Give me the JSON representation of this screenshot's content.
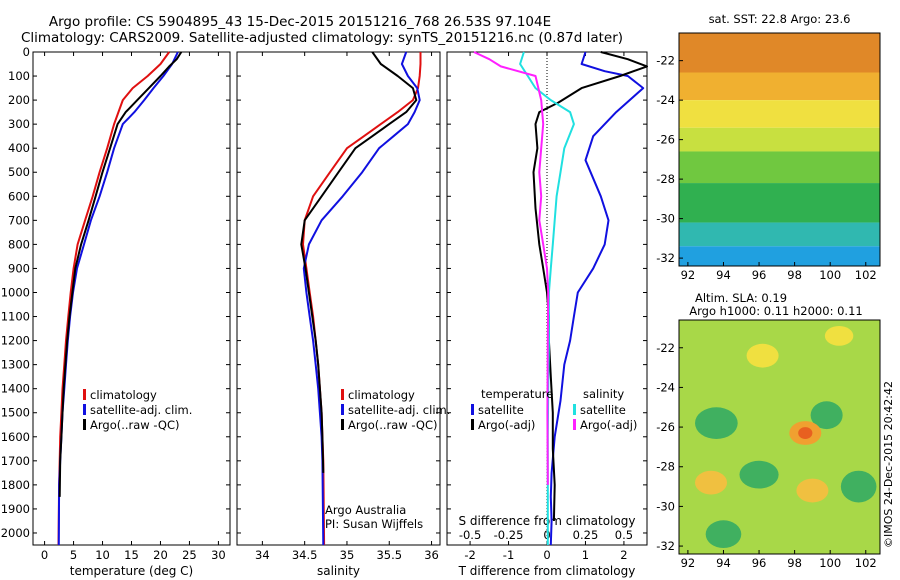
{
  "header": {
    "line1": "Argo profile: CS 5904895_43 15-Dec-2015 20151216_768 26.53S 97.104E",
    "line2": "Climatology: CARS2009. Satellite-adjusted climatology: synTS_20151216.nc (0.87d later)"
  },
  "colors": {
    "climatology": "#e01010",
    "satellite": "#1010e0",
    "argo": "#000000",
    "satellite_salinity": "#20e0e0",
    "argo_salinity": "#ff20ff"
  },
  "depth_axis": {
    "ylim": [
      0,
      2050
    ],
    "ticks": [
      0,
      100,
      200,
      300,
      400,
      500,
      600,
      700,
      800,
      900,
      1000,
      1100,
      1200,
      1300,
      1400,
      1500,
      1600,
      1700,
      1800,
      1900,
      2000
    ]
  },
  "chart_data": [
    {
      "type": "line",
      "id": "temperature",
      "xlabel": "temperature (deg C)",
      "ylabel": "",
      "xlim": [
        -2,
        32
      ],
      "xticks": [
        0,
        5,
        10,
        15,
        20,
        25,
        30
      ],
      "ylim": [
        0,
        2050
      ],
      "legend": [
        "climatology",
        "satellite-adj. clim.",
        "Argo(..raw -QC)"
      ],
      "series": [
        {
          "name": "climatology",
          "color_key": "climatology",
          "x": [
            21.5,
            20,
            17.8,
            15.2,
            13.5,
            12,
            10.8,
            9.5,
            8.3,
            7,
            5.7,
            5,
            4.5,
            4.1,
            3.7,
            3.4,
            3.1,
            2.9,
            2.7,
            2.6,
            2.5,
            2.4
          ],
          "y": [
            0,
            50,
            100,
            150,
            200,
            300,
            400,
            500,
            600,
            700,
            800,
            900,
            1000,
            1100,
            1200,
            1300,
            1400,
            1500,
            1600,
            1700,
            1800,
            2050
          ]
        },
        {
          "name": "satellite-adj. clim.",
          "color_key": "satellite",
          "x": [
            23,
            22,
            20.5,
            18.8,
            17.2,
            15.5,
            13.5,
            12,
            10.8,
            9.5,
            8,
            6.8,
            5.6,
            4.9,
            4.4,
            4,
            3.7,
            3.4,
            3.1,
            2.9,
            2.7,
            2.5,
            2.45
          ],
          "y": [
            0,
            50,
            100,
            150,
            200,
            250,
            300,
            400,
            500,
            600,
            700,
            800,
            900,
            1000,
            1100,
            1200,
            1300,
            1400,
            1500,
            1600,
            1700,
            1800,
            2050
          ]
        },
        {
          "name": "Argo(..raw -QC)",
          "color_key": "argo",
          "x": [
            23.6,
            22.8,
            21.5,
            20,
            18,
            16,
            14,
            12.6,
            11.3,
            10,
            8.8,
            7.6,
            6.3,
            5.3,
            4.8,
            4.3,
            3.9,
            3.6,
            3.3,
            3.1,
            2.9,
            2.7,
            2.6
          ],
          "y": [
            0,
            30,
            60,
            100,
            150,
            200,
            250,
            300,
            400,
            500,
            600,
            700,
            800,
            900,
            1000,
            1100,
            1200,
            1300,
            1400,
            1500,
            1600,
            1700,
            1850
          ]
        }
      ]
    },
    {
      "type": "line",
      "id": "salinity",
      "xlabel": "salinity",
      "ylabel": "",
      "xlim": [
        33.7,
        36.1
      ],
      "xticks": [
        34,
        34.5,
        35,
        35.5,
        36
      ],
      "ylim": [
        0,
        2050
      ],
      "legend": [
        "climatology",
        "satellite-adj. clim.",
        "Argo(..raw -QC)"
      ],
      "annotation": [
        "Argo Australia",
        "PI: Susan Wijffels"
      ],
      "series": [
        {
          "name": "climatology",
          "color_key": "climatology",
          "x": [
            35.87,
            35.87,
            35.86,
            35.84,
            35.78,
            35.6,
            35.4,
            35.2,
            35,
            34.8,
            34.6,
            34.5,
            34.48,
            34.52,
            34.56,
            34.6,
            34.63,
            34.66,
            34.68,
            34.7,
            34.71,
            34.72,
            34.73
          ],
          "y": [
            0,
            50,
            100,
            150,
            200,
            250,
            300,
            350,
            400,
            500,
            600,
            700,
            800,
            900,
            1000,
            1100,
            1200,
            1300,
            1400,
            1500,
            1600,
            1700,
            2050
          ]
        },
        {
          "name": "satellite-adj. clim.",
          "color_key": "satellite",
          "x": [
            35.7,
            35.65,
            35.72,
            35.83,
            35.86,
            35.8,
            35.72,
            35.55,
            35.38,
            35.18,
            34.95,
            34.7,
            34.55,
            34.49,
            34.52,
            34.56,
            34.6,
            34.63,
            34.66,
            34.68,
            34.7,
            34.71,
            34.72
          ],
          "y": [
            0,
            50,
            100,
            150,
            200,
            250,
            300,
            350,
            400,
            500,
            600,
            700,
            800,
            900,
            1000,
            1100,
            1200,
            1300,
            1400,
            1500,
            1600,
            1700,
            2050
          ]
        },
        {
          "name": "Argo(..raw -QC)",
          "color_key": "argo",
          "x": [
            35.3,
            35.4,
            35.6,
            35.78,
            35.82,
            35.7,
            35.5,
            35.3,
            35.1,
            34.9,
            34.7,
            34.5,
            34.46,
            34.51,
            34.55,
            34.59,
            34.63,
            34.66,
            34.68,
            34.7,
            34.71,
            34.72
          ],
          "y": [
            0,
            50,
            100,
            150,
            200,
            250,
            300,
            350,
            400,
            500,
            600,
            700,
            800,
            900,
            1000,
            1100,
            1200,
            1300,
            1400,
            1500,
            1600,
            1750
          ]
        }
      ]
    },
    {
      "type": "line",
      "id": "difference",
      "xlabel": "T difference from climatology",
      "xlabel2": "S difference from climatology",
      "xlim": [
        -2.6,
        2.6
      ],
      "xticks": [
        -2,
        -1,
        0,
        1,
        2
      ],
      "xticklabels": [
        "-2",
        "-1",
        "0",
        "1",
        "2"
      ],
      "sticks": [
        -0.5,
        -0.25,
        0,
        0.25,
        0.5
      ],
      "sticklabels": [
        "-0.5",
        "-0.25",
        "0",
        "0.25",
        "0.5"
      ],
      "ylim": [
        0,
        2050
      ],
      "legend_titles": [
        "temperature",
        "salinity"
      ],
      "legend": [
        "satellite",
        "Argo(-adj)",
        "satellite",
        "Argo(-adj)"
      ],
      "series": [
        {
          "name": "satellite",
          "group": "temperature",
          "color_key": "satellite",
          "x": [
            1.0,
            0.9,
            1.5,
            2.1,
            2.5,
            1.8,
            1.2,
            1.0,
            1.4,
            1.6,
            1.5,
            1.2,
            0.8,
            0.7,
            0.6,
            0.45,
            0.35,
            0.2,
            0.12,
            0.1,
            0.12,
            0.1
          ],
          "y": [
            0,
            50,
            80,
            100,
            150,
            250,
            350,
            450,
            600,
            700,
            800,
            900,
            1000,
            1100,
            1200,
            1300,
            1450,
            1600,
            1750,
            1850,
            1950,
            2050
          ]
        },
        {
          "name": "Argo(-adj)",
          "group": "temperature",
          "color_key": "argo",
          "x": [
            1.4,
            2.1,
            2.6,
            1.9,
            0.9,
            0.3,
            -0.2,
            -0.3,
            -0.25,
            -0.35,
            -0.3,
            -0.2,
            -0.1,
            0,
            0.05,
            0.05,
            0.1,
            0.15,
            0.15,
            0.2,
            0.18
          ],
          "y": [
            0,
            30,
            60,
            100,
            150,
            210,
            250,
            300,
            400,
            500,
            650,
            800,
            900,
            1000,
            1100,
            1200,
            1350,
            1500,
            1650,
            1800,
            1950
          ]
        },
        {
          "name": "satellite",
          "group": "salinity",
          "color_key": "satellite_salinity",
          "x": [
            -0.6,
            -0.7,
            -0.5,
            -0.3,
            0.1,
            0.6,
            0.7,
            0.45,
            0.35,
            0.25,
            0.2,
            0.15,
            0.1,
            0.05,
            0.05,
            0.03,
            0.02,
            0.02
          ],
          "y": [
            0,
            50,
            100,
            150,
            200,
            250,
            300,
            400,
            500,
            600,
            700,
            800,
            900,
            1000,
            1200,
            1400,
            1600,
            2050
          ]
        },
        {
          "name": "Argo(-adj)",
          "group": "salinity",
          "color_key": "argo_salinity",
          "x": [
            -1.9,
            -1.5,
            -1.2,
            -0.3,
            -0.15,
            -0.1,
            -0.15,
            -0.2,
            -0.15,
            -0.2,
            -0.1,
            0,
            0.03,
            0.02,
            0.01,
            0.02
          ],
          "y": [
            0,
            30,
            60,
            100,
            200,
            300,
            400,
            500,
            600,
            700,
            800,
            900,
            1000,
            1200,
            1500,
            1800
          ]
        }
      ]
    },
    {
      "type": "heatmap",
      "id": "sst-map",
      "title": "sat. SST: 22.8  Argo: 23.6",
      "xlim": [
        91.5,
        102.8
      ],
      "ylim": [
        -32.4,
        -20.6
      ],
      "xticks": [
        92,
        94,
        96,
        98,
        100,
        102
      ],
      "yticks": [
        -22,
        -24,
        -26,
        -28,
        -30,
        -32
      ],
      "bands": [
        {
          "lat_top": -20.6,
          "lat_bottom": -22.6,
          "color": "#e08828"
        },
        {
          "lat_top": -22.6,
          "lat_bottom": -24.0,
          "color": "#f0b030"
        },
        {
          "lat_top": -24.0,
          "lat_bottom": -25.4,
          "color": "#f0e040"
        },
        {
          "lat_top": -25.4,
          "lat_bottom": -26.6,
          "color": "#c8e040"
        },
        {
          "lat_top": -26.6,
          "lat_bottom": -28.2,
          "color": "#70c840"
        },
        {
          "lat_top": -28.2,
          "lat_bottom": -30.2,
          "color": "#30b050"
        },
        {
          "lat_top": -30.2,
          "lat_bottom": -31.4,
          "color": "#30b8b0"
        },
        {
          "lat_top": -31.4,
          "lat_bottom": -32.4,
          "color": "#20a0e0"
        }
      ]
    },
    {
      "type": "heatmap",
      "id": "sla-map",
      "title": "Altim. SLA: 0.19",
      "subtitle": "Argo h1000: 0.11 h2000: 0.11",
      "xlim": [
        91.5,
        102.8
      ],
      "ylim": [
        -32.4,
        -20.6
      ],
      "xticks": [
        92,
        94,
        96,
        98,
        100,
        102
      ],
      "yticks": [
        -22,
        -24,
        -26,
        -28,
        -30,
        -32
      ],
      "background": "#a8d848",
      "blobs": [
        {
          "lon": 93.6,
          "lat": -25.8,
          "rx": 1.2,
          "ry": 0.8,
          "color": "#40b060"
        },
        {
          "lon": 99.8,
          "lat": -25.4,
          "rx": 0.9,
          "ry": 0.7,
          "color": "#40b060"
        },
        {
          "lon": 96.0,
          "lat": -28.4,
          "rx": 1.1,
          "ry": 0.7,
          "color": "#40b060"
        },
        {
          "lon": 101.6,
          "lat": -29.0,
          "rx": 1.0,
          "ry": 0.8,
          "color": "#40b060"
        },
        {
          "lon": 94.0,
          "lat": -31.4,
          "rx": 1.0,
          "ry": 0.7,
          "color": "#40b060"
        },
        {
          "lon": 98.6,
          "lat": -26.3,
          "rx": 0.9,
          "ry": 0.6,
          "color": "#f0a030"
        },
        {
          "lon": 98.6,
          "lat": -26.3,
          "rx": 0.4,
          "ry": 0.3,
          "color": "#e86020"
        },
        {
          "lon": 93.3,
          "lat": -28.8,
          "rx": 0.9,
          "ry": 0.6,
          "color": "#f0c040"
        },
        {
          "lon": 99.0,
          "lat": -29.2,
          "rx": 0.9,
          "ry": 0.6,
          "color": "#f0c040"
        },
        {
          "lon": 96.2,
          "lat": -22.4,
          "rx": 0.9,
          "ry": 0.6,
          "color": "#f0e040"
        },
        {
          "lon": 100.5,
          "lat": -21.4,
          "rx": 0.8,
          "ry": 0.5,
          "color": "#f0e040"
        }
      ]
    }
  ],
  "footer": {
    "credit": "©IMOS 24-Dec-2015 20:42:42"
  }
}
